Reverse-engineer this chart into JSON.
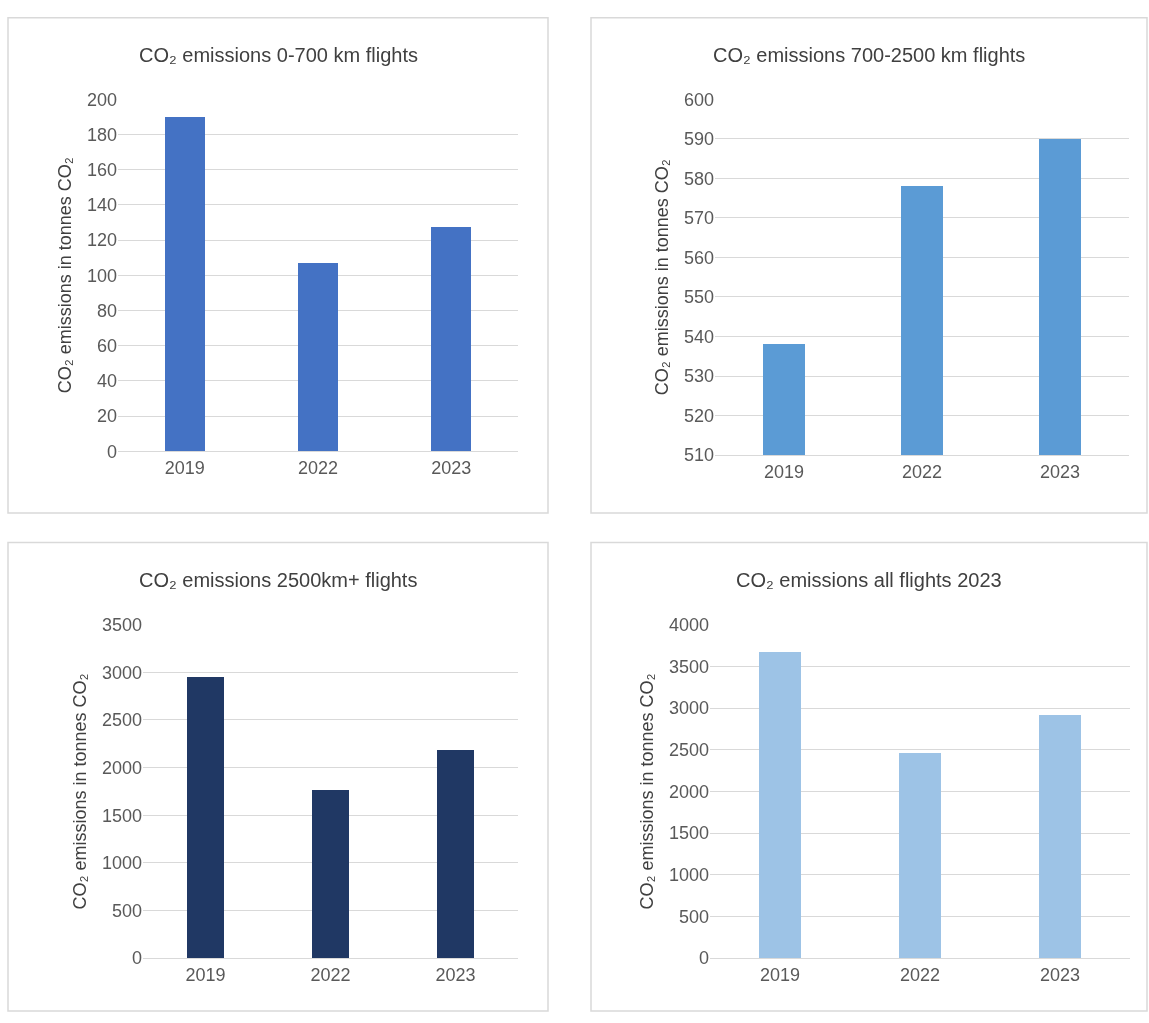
{
  "chart_data": [
    {
      "type": "bar",
      "title": "CO₂ emissions 0-700 km flights",
      "ylabel": "CO₂ emissions in tonnes CO₂",
      "categories": [
        "2019",
        "2022",
        "2023"
      ],
      "values": [
        190,
        107,
        127
      ],
      "color": "#4472c4",
      "ylim": [
        0,
        200
      ],
      "yticks": [
        0,
        20,
        40,
        60,
        80,
        100,
        120,
        140,
        160,
        180,
        200
      ],
      "grid": "y"
    },
    {
      "type": "bar",
      "title": "CO₂ emissions 700-2500 km flights",
      "ylabel": "CO₂ emissions in tonnes CO₂",
      "categories": [
        "2019",
        "2022",
        "2023"
      ],
      "values": [
        538,
        578,
        590
      ],
      "color": "#5b9bd5",
      "ylim": [
        510,
        600
      ],
      "yticks": [
        510,
        520,
        530,
        540,
        550,
        560,
        570,
        580,
        590,
        600
      ],
      "grid": "y"
    },
    {
      "type": "bar",
      "title": "CO₂ emissions 2500km+ flights",
      "ylabel": "CO₂ emissions in tonnes CO₂",
      "categories": [
        "2019",
        "2022",
        "2023"
      ],
      "values": [
        2950,
        1770,
        2190
      ],
      "color": "#203864",
      "ylim": [
        0,
        3500
      ],
      "yticks": [
        0,
        500,
        1000,
        1500,
        2000,
        2500,
        3000,
        3500
      ],
      "grid": "y"
    },
    {
      "type": "bar",
      "title": "CO₂ emissions all flights 2023",
      "ylabel": "CO₂ emissions in tonnes CO₂",
      "categories": [
        "2019",
        "2022",
        "2023"
      ],
      "values": [
        3680,
        2460,
        2920
      ],
      "color": "#9dc3e6",
      "ylim": [
        0,
        4000
      ],
      "yticks": [
        0,
        500,
        1000,
        1500,
        2000,
        2500,
        3000,
        3500,
        4000
      ],
      "grid": "y"
    }
  ]
}
